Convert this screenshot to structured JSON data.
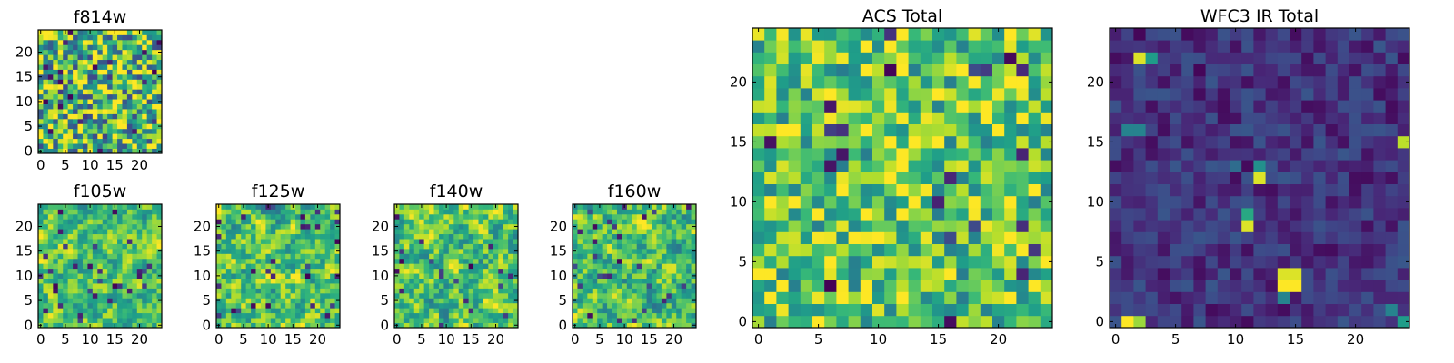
{
  "chart_data": [
    {
      "id": "f814w",
      "type": "heatmap",
      "title": "f814w",
      "grid_size": [
        25,
        25
      ],
      "xlim": [
        -0.5,
        24.5
      ],
      "ylim": [
        -0.5,
        24.5
      ],
      "xticks": [
        0,
        5,
        10,
        15,
        20
      ],
      "yticks": [
        0,
        5,
        10,
        15,
        20
      ],
      "colormap": "viridis",
      "value_range": [
        0,
        1
      ],
      "seed": 11,
      "mean": 0.68,
      "spread": 0.45,
      "smooth": 0
    },
    {
      "id": "f105w",
      "type": "heatmap",
      "title": "f105w",
      "grid_size": [
        25,
        25
      ],
      "xlim": [
        -0.5,
        24.5
      ],
      "ylim": [
        -0.5,
        24.5
      ],
      "xticks": [
        0,
        5,
        10,
        15,
        20
      ],
      "yticks": [
        0,
        5,
        10,
        15,
        20
      ],
      "colormap": "viridis",
      "value_range": [
        0,
        1
      ],
      "seed": 23,
      "mean": 0.7,
      "spread": 0.4,
      "smooth": 1
    },
    {
      "id": "f125w",
      "type": "heatmap",
      "title": "f125w",
      "grid_size": [
        25,
        25
      ],
      "xlim": [
        -0.5,
        24.5
      ],
      "ylim": [
        -0.5,
        24.5
      ],
      "xticks": [
        0,
        5,
        10,
        15,
        20
      ],
      "yticks": [
        0,
        5,
        10,
        15,
        20
      ],
      "colormap": "viridis",
      "value_range": [
        0,
        1
      ],
      "seed": 37,
      "mean": 0.72,
      "spread": 0.45,
      "smooth": 1
    },
    {
      "id": "f140w",
      "type": "heatmap",
      "title": "f140w",
      "grid_size": [
        25,
        25
      ],
      "xlim": [
        -0.5,
        24.5
      ],
      "ylim": [
        -0.5,
        24.5
      ],
      "xticks": [
        0,
        5,
        10,
        15,
        20
      ],
      "yticks": [
        0,
        5,
        10,
        15,
        20
      ],
      "colormap": "viridis",
      "value_range": [
        0,
        1
      ],
      "seed": 41,
      "mean": 0.72,
      "spread": 0.45,
      "smooth": 1
    },
    {
      "id": "f160w",
      "type": "heatmap",
      "title": "f160w",
      "grid_size": [
        25,
        25
      ],
      "xlim": [
        -0.5,
        24.5
      ],
      "ylim": [
        -0.5,
        24.5
      ],
      "xticks": [
        0,
        5,
        10,
        15,
        20
      ],
      "yticks": [
        0,
        5,
        10,
        15,
        20
      ],
      "colormap": "viridis",
      "value_range": [
        0,
        1
      ],
      "seed": 53,
      "mean": 0.7,
      "spread": 0.45,
      "smooth": 1
    },
    {
      "id": "acs_total",
      "type": "heatmap",
      "title": "ACS Total",
      "grid_size": [
        25,
        25
      ],
      "xlim": [
        -0.5,
        24.5
      ],
      "ylim": [
        -0.5,
        24.5
      ],
      "xticks": [
        0,
        5,
        10,
        15,
        20
      ],
      "yticks": [
        0,
        5,
        10,
        15,
        20
      ],
      "colormap": "viridis",
      "value_range": [
        0,
        1
      ],
      "seed": 67,
      "mean": 0.74,
      "spread": 0.32,
      "smooth": 0
    },
    {
      "id": "wfc3_ir_total",
      "type": "heatmap",
      "title": "WFC3 IR Total",
      "grid_size": [
        25,
        25
      ],
      "xlim": [
        -0.5,
        24.5
      ],
      "ylim": [
        -0.5,
        24.5
      ],
      "xticks": [
        0,
        5,
        10,
        15,
        20
      ],
      "yticks": [
        0,
        5,
        10,
        15,
        20
      ],
      "colormap": "viridis",
      "value_range": [
        0,
        1
      ],
      "seed": 79,
      "mean": 0.15,
      "spread": 0.12,
      "smooth": 0,
      "highlights": [
        [
          1,
          0,
          1.0
        ],
        [
          2,
          0,
          0.85
        ],
        [
          2,
          22,
          0.95
        ],
        [
          3,
          22,
          0.55
        ],
        [
          1,
          16,
          0.45
        ],
        [
          2,
          16,
          0.45
        ],
        [
          12,
          12,
          0.95
        ],
        [
          12,
          13,
          0.5
        ],
        [
          11,
          8,
          0.95
        ],
        [
          11,
          9,
          0.6
        ],
        [
          14,
          3,
          1.0
        ],
        [
          15,
          3,
          1.0
        ],
        [
          14,
          4,
          0.95
        ],
        [
          15,
          4,
          0.95
        ],
        [
          14,
          2,
          0.45
        ],
        [
          24,
          15,
          0.9
        ],
        [
          24,
          0,
          0.55
        ],
        [
          23,
          1,
          0.45
        ],
        [
          10,
          13,
          0.35
        ]
      ]
    }
  ]
}
